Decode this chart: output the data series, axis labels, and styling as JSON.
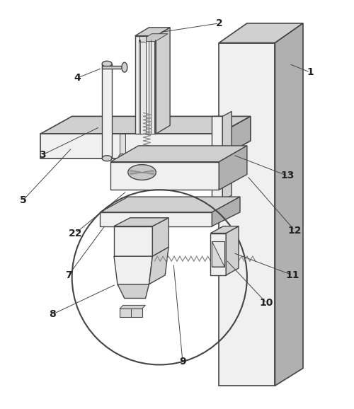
{
  "bg_color": "#ffffff",
  "lc": "#444444",
  "fl": "#f0f0f0",
  "fm": "#d0d0d0",
  "fd": "#b0b0b0",
  "figsize": [
    5.0,
    5.78
  ],
  "dpi": 100
}
